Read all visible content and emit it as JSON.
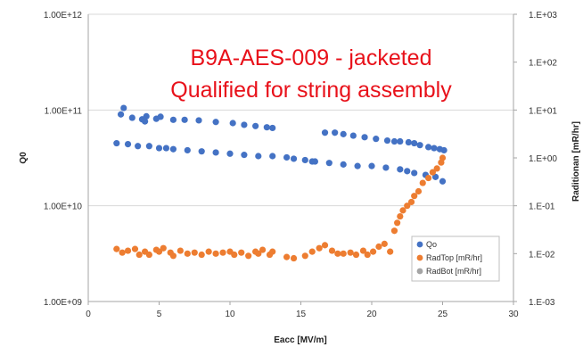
{
  "chart_data": {
    "type": "scatter",
    "title": [
      "B9A-AES-009 - jacketed",
      "Qualified for string assembly"
    ],
    "title_color": "#e8111a",
    "xlabel": "Eacc [MV/m]",
    "ylabel": "Q0",
    "y2label": "Raditionan [mR/hr]",
    "xlim": [
      0,
      30
    ],
    "ylim": [
      1000000000.0,
      1000000000000.0
    ],
    "y2lim": [
      0.001,
      1000
    ],
    "y_scale": "log",
    "y2_scale": "log",
    "grid": "horizontal",
    "legend_position": "bottom-right",
    "x_ticks": [
      0,
      5,
      10,
      15,
      20,
      25,
      30
    ],
    "x_tick_labels": [
      "0",
      "5",
      "10",
      "15",
      "20",
      "25",
      "30"
    ],
    "y_ticks": [
      1000000000.0,
      10000000000.0,
      100000000000.0,
      1000000000000.0
    ],
    "y_tick_labels": [
      "1.00E+09",
      "1.00E+10",
      "1.00E+11",
      "1.00E+12"
    ],
    "y2_ticks": [
      0.001,
      0.01,
      0.1,
      1,
      10,
      100,
      1000
    ],
    "y2_tick_labels": [
      "1.E-03",
      "1.E-02",
      "1.E-01",
      "1.E+00",
      "1.E+01",
      "1.E+02",
      "1.E+03"
    ],
    "series": [
      {
        "name": "Qo",
        "axis": "left",
        "color": "#4472c4",
        "points": [
          [
            2.0,
            45000000000.0
          ],
          [
            2.8,
            44000000000.0
          ],
          [
            3.5,
            42000000000.0
          ],
          [
            4.3,
            42000000000.0
          ],
          [
            5.0,
            40000000000.0
          ],
          [
            5.5,
            40000000000.0
          ],
          [
            6.0,
            39000000000.0
          ],
          [
            7.0,
            38000000000.0
          ],
          [
            8.0,
            37000000000.0
          ],
          [
            9.0,
            36000000000.0
          ],
          [
            10.0,
            35000000000.0
          ],
          [
            11.0,
            34000000000.0
          ],
          [
            12.0,
            33000000000.0
          ],
          [
            13.0,
            33000000000.0
          ],
          [
            14.0,
            32000000000.0
          ],
          [
            14.5,
            31000000000.0
          ],
          [
            15.3,
            30000000000.0
          ],
          [
            15.8,
            29000000000.0
          ],
          [
            16.0,
            29000000000.0
          ],
          [
            17.0,
            28000000000.0
          ],
          [
            18.0,
            27000000000.0
          ],
          [
            19.0,
            26000000000.0
          ],
          [
            20.0,
            26000000000.0
          ],
          [
            21.0,
            25000000000.0
          ],
          [
            22.0,
            24000000000.0
          ],
          [
            22.5,
            23000000000.0
          ],
          [
            23.0,
            22000000000.0
          ],
          [
            23.8,
            21000000000.0
          ],
          [
            24.5,
            20000000000.0
          ],
          [
            25.0,
            18000000000.0
          ],
          [
            2.3,
            90000000000.0
          ],
          [
            2.5,
            105000000000.0
          ],
          [
            3.1,
            83000000000.0
          ],
          [
            3.8,
            80000000000.0
          ],
          [
            4.0,
            76000000000.0
          ],
          [
            4.1,
            86000000000.0
          ],
          [
            4.8,
            81000000000.0
          ],
          [
            5.1,
            85000000000.0
          ],
          [
            6.0,
            79000000000.0
          ],
          [
            6.8,
            79000000000.0
          ],
          [
            7.8,
            78000000000.0
          ],
          [
            9.0,
            75000000000.0
          ],
          [
            10.2,
            73000000000.0
          ],
          [
            11.0,
            70000000000.0
          ],
          [
            11.8,
            68000000000.0
          ],
          [
            12.6,
            66000000000.0
          ],
          [
            13.0,
            65000000000.0
          ],
          [
            16.7,
            58000000000.0
          ],
          [
            17.4,
            58000000000.0
          ],
          [
            18.0,
            56000000000.0
          ],
          [
            18.7,
            54000000000.0
          ],
          [
            19.5,
            52000000000.0
          ],
          [
            20.3,
            50000000000.0
          ],
          [
            21.1,
            48000000000.0
          ],
          [
            21.6,
            47000000000.0
          ],
          [
            22.0,
            47000000000.0
          ],
          [
            22.6,
            46000000000.0
          ],
          [
            23.0,
            45000000000.0
          ],
          [
            23.4,
            43000000000.0
          ],
          [
            24.0,
            41000000000.0
          ],
          [
            24.4,
            40000000000.0
          ],
          [
            24.8,
            39000000000.0
          ],
          [
            25.1,
            38000000000.0
          ]
        ]
      },
      {
        "name": "RadTop [mR/hr]",
        "axis": "right",
        "color": "#ed7d31",
        "points": [
          [
            2.0,
            0.0125
          ],
          [
            2.4,
            0.0105
          ],
          [
            2.8,
            0.0115
          ],
          [
            3.3,
            0.0125
          ],
          [
            3.6,
            0.0095
          ],
          [
            4.0,
            0.011
          ],
          [
            4.3,
            0.0095
          ],
          [
            4.8,
            0.012
          ],
          [
            5.0,
            0.011
          ],
          [
            5.3,
            0.013
          ],
          [
            5.8,
            0.0105
          ],
          [
            6.0,
            0.009
          ],
          [
            6.5,
            0.0115
          ],
          [
            7.0,
            0.01
          ],
          [
            7.5,
            0.0105
          ],
          [
            8.0,
            0.0095
          ],
          [
            8.5,
            0.011
          ],
          [
            9.0,
            0.01
          ],
          [
            9.5,
            0.0105
          ],
          [
            10.0,
            0.011
          ],
          [
            10.3,
            0.0095
          ],
          [
            10.8,
            0.0105
          ],
          [
            11.3,
            0.009
          ],
          [
            11.8,
            0.011
          ],
          [
            12.0,
            0.01
          ],
          [
            12.3,
            0.012
          ],
          [
            12.8,
            0.0095
          ],
          [
            13.0,
            0.011
          ],
          [
            14.0,
            0.0085
          ],
          [
            14.5,
            0.008
          ],
          [
            15.3,
            0.009
          ],
          [
            15.8,
            0.011
          ],
          [
            16.3,
            0.013
          ],
          [
            16.7,
            0.015
          ],
          [
            17.2,
            0.0115
          ],
          [
            17.6,
            0.01
          ],
          [
            18.0,
            0.01
          ],
          [
            18.5,
            0.0105
          ],
          [
            18.9,
            0.0095
          ],
          [
            19.4,
            0.0115
          ],
          [
            19.7,
            0.0095
          ],
          [
            20.1,
            0.011
          ],
          [
            20.5,
            0.014
          ],
          [
            20.9,
            0.016
          ],
          [
            21.3,
            0.011
          ],
          [
            21.6,
            0.03
          ],
          [
            21.8,
            0.044
          ],
          [
            22.0,
            0.06
          ],
          [
            22.2,
            0.08
          ],
          [
            22.5,
            0.1
          ],
          [
            22.8,
            0.12
          ],
          [
            23.0,
            0.16
          ],
          [
            23.3,
            0.2
          ],
          [
            23.6,
            0.3
          ],
          [
            24.0,
            0.38
          ],
          [
            24.3,
            0.5
          ],
          [
            24.6,
            0.6
          ],
          [
            24.9,
            0.8
          ],
          [
            25.0,
            1.0
          ]
        ]
      },
      {
        "name": "RadBot [mR/hr]",
        "axis": "right",
        "color": "#a5a5a5",
        "points": []
      }
    ]
  }
}
